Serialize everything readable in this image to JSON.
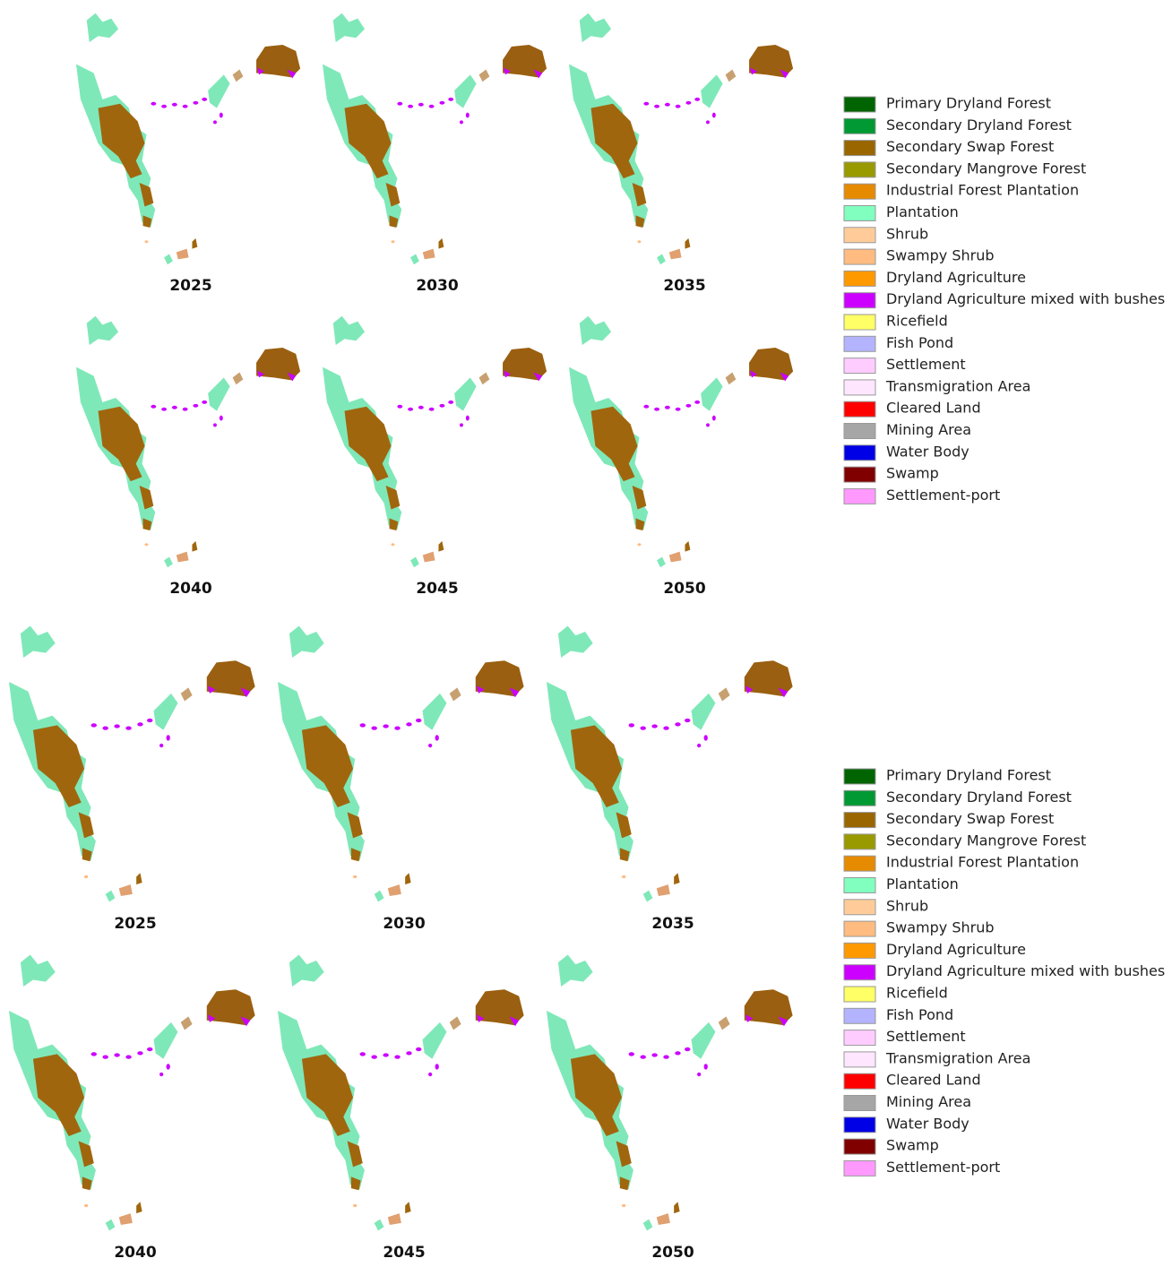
{
  "panels": [
    {
      "maps": [
        {
          "label": "2025"
        },
        {
          "label": "2030"
        },
        {
          "label": "2035"
        },
        {
          "label": "2040"
        },
        {
          "label": "2045"
        },
        {
          "label": "2050"
        }
      ],
      "legend": [
        {
          "label": "Primary Dryland Forest",
          "color": "#006400"
        },
        {
          "label": "Secondary Dryland Forest",
          "color": "#009933"
        },
        {
          "label": "Secondary Swap Forest",
          "color": "#996600"
        },
        {
          "label": "Secondary Mangrove Forest",
          "color": "#999900"
        },
        {
          "label": "Industrial Forest Plantation",
          "color": "#e68a00"
        },
        {
          "label": "Plantation",
          "color": "#80ffbf"
        },
        {
          "label": "Shrub",
          "color": "#ffcc99"
        },
        {
          "label": "Swampy Shrub",
          "color": "#ffbb80"
        },
        {
          "label": "Dryland Agriculture",
          "color": "#ff9900"
        },
        {
          "label": "Dryland Agriculture mixed with bushes",
          "color": "#cc00ff"
        },
        {
          "label": "Ricefield",
          "color": "#ffff66"
        },
        {
          "label": "Fish Pond",
          "color": "#b3b3ff"
        },
        {
          "label": "Settlement",
          "color": "#ffccff"
        },
        {
          "label": "Transmigration Area",
          "color": "#ffe6ff"
        },
        {
          "label": "Cleared Land",
          "color": "#ff0000"
        },
        {
          "label": "Mining Area",
          "color": "#a6a6a6"
        },
        {
          "label": "Water Body",
          "color": "#0000e6"
        },
        {
          "label": "Swamp",
          "color": "#800000"
        },
        {
          "label": "Settlement-port",
          "color": "#ff99ff"
        }
      ]
    },
    {
      "maps": [
        {
          "label": "2025"
        },
        {
          "label": "2030"
        },
        {
          "label": "2035"
        },
        {
          "label": "2040"
        },
        {
          "label": "2045"
        },
        {
          "label": "2050"
        }
      ],
      "legend": [
        {
          "label": "Primary Dryland Forest",
          "color": "#006400"
        },
        {
          "label": "Secondary Dryland Forest",
          "color": "#009933"
        },
        {
          "label": "Secondary Swap Forest",
          "color": "#996600"
        },
        {
          "label": "Secondary Mangrove Forest",
          "color": "#999900"
        },
        {
          "label": "Industrial Forest Plantation",
          "color": "#e68a00"
        },
        {
          "label": "Plantation",
          "color": "#80ffbf"
        },
        {
          "label": "Shrub",
          "color": "#ffcc99"
        },
        {
          "label": "Swampy Shrub",
          "color": "#ffbb80"
        },
        {
          "label": "Dryland Agriculture",
          "color": "#ff9900"
        },
        {
          "label": "Dryland Agriculture mixed with bushes",
          "color": "#cc00ff"
        },
        {
          "label": "Ricefield",
          "color": "#ffff66"
        },
        {
          "label": "Fish Pond",
          "color": "#b3b3ff"
        },
        {
          "label": "Settlement",
          "color": "#ffccff"
        },
        {
          "label": "Transmigration Area",
          "color": "#ffe6ff"
        },
        {
          "label": "Cleared Land",
          "color": "#ff0000"
        },
        {
          "label": "Mining Area",
          "color": "#a6a6a6"
        },
        {
          "label": "Water Body",
          "color": "#0000e6"
        },
        {
          "label": "Swamp",
          "color": "#800000"
        },
        {
          "label": "Settlement-port",
          "color": "#ff99ff"
        }
      ]
    }
  ]
}
